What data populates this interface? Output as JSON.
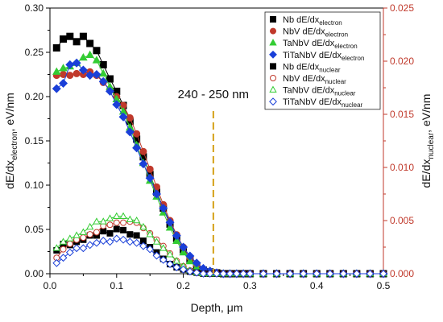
{
  "chart_data": {
    "type": "scatter",
    "xlabel": "Depth, μm",
    "ylabel_left": {
      "main": "dE/dx",
      "sub": "electron",
      "rest": ", eV/nm"
    },
    "ylabel_right": {
      "main": "dE/dx",
      "sub": "nuclear",
      "rest": ", eV/nm"
    },
    "xlim": [
      0,
      0.5
    ],
    "ylim_left": [
      0,
      0.3
    ],
    "ylim_right": [
      0,
      0.025
    ],
    "xticks": [
      "0.0",
      "0.1",
      "0.2",
      "0.3",
      "0.4",
      "0.5"
    ],
    "yticks_left": [
      "0.00",
      "0.05",
      "0.10",
      "0.15",
      "0.20",
      "0.25",
      "0.30"
    ],
    "yticks_right": [
      "0.000",
      "0.005",
      "0.010",
      "0.015",
      "0.020",
      "0.025"
    ],
    "grid": false,
    "legend_position": "top-right",
    "annotation": {
      "text": "240 - 250 nm",
      "x": 0.245,
      "color": "#d4a017"
    },
    "colors": {
      "right_axis": "#c0392b"
    },
    "series": [
      {
        "name": "Nb dE/dx",
        "sub": "electron",
        "axis": "left",
        "marker": "square",
        "fill": true,
        "color": "#000000",
        "x": [
          0.01,
          0.02,
          0.03,
          0.04,
          0.05,
          0.06,
          0.07,
          0.08,
          0.09,
          0.1,
          0.11,
          0.12,
          0.13,
          0.14,
          0.15,
          0.16,
          0.17,
          0.18,
          0.19,
          0.2,
          0.21,
          0.22,
          0.23,
          0.24,
          0.25,
          0.26,
          0.27,
          0.28,
          0.29,
          0.3,
          0.32,
          0.34,
          0.36,
          0.38,
          0.4,
          0.42,
          0.44,
          0.46,
          0.48,
          0.5
        ],
        "y": [
          0.255,
          0.265,
          0.268,
          0.262,
          0.268,
          0.26,
          0.252,
          0.236,
          0.22,
          0.206,
          0.19,
          0.172,
          0.152,
          0.132,
          0.112,
          0.092,
          0.074,
          0.056,
          0.04,
          0.027,
          0.016,
          0.009,
          0.004,
          0.002,
          0.001,
          0,
          0,
          0,
          0,
          0,
          0,
          0,
          0,
          0,
          0,
          0,
          0,
          0,
          0,
          0
        ]
      },
      {
        "name": "NbV  dE/dx",
        "sub": "electron",
        "axis": "left",
        "marker": "circle",
        "fill": true,
        "color": "#c0392b",
        "x": [
          0.01,
          0.02,
          0.03,
          0.04,
          0.05,
          0.06,
          0.07,
          0.08,
          0.09,
          0.1,
          0.11,
          0.12,
          0.13,
          0.14,
          0.15,
          0.16,
          0.17,
          0.18,
          0.19,
          0.2,
          0.21,
          0.22,
          0.23,
          0.24,
          0.25,
          0.26,
          0.27,
          0.28,
          0.29,
          0.3,
          0.32,
          0.34,
          0.36,
          0.38,
          0.4,
          0.42,
          0.44,
          0.46,
          0.48,
          0.5
        ],
        "y": [
          0.224,
          0.225,
          0.224,
          0.226,
          0.225,
          0.228,
          0.224,
          0.216,
          0.208,
          0.2,
          0.19,
          0.176,
          0.158,
          0.138,
          0.118,
          0.098,
          0.078,
          0.06,
          0.044,
          0.03,
          0.018,
          0.01,
          0.005,
          0.002,
          0.001,
          0,
          0,
          0,
          0,
          0,
          0,
          0,
          0,
          0,
          0,
          0,
          0,
          0,
          0,
          0
        ]
      },
      {
        "name": "TaNbV dE/dx",
        "sub": "electron",
        "axis": "left",
        "marker": "triangle",
        "fill": true,
        "color": "#33cc33",
        "x": [
          0.01,
          0.02,
          0.03,
          0.04,
          0.05,
          0.06,
          0.07,
          0.08,
          0.09,
          0.1,
          0.11,
          0.12,
          0.13,
          0.14,
          0.15,
          0.16,
          0.17,
          0.18,
          0.19,
          0.2,
          0.21,
          0.22,
          0.23,
          0.24,
          0.25,
          0.26,
          0.27,
          0.28,
          0.29,
          0.3,
          0.32,
          0.34,
          0.36,
          0.38,
          0.4,
          0.42,
          0.44,
          0.46,
          0.48,
          0.5
        ],
        "y": [
          0.228,
          0.232,
          0.234,
          0.238,
          0.244,
          0.247,
          0.241,
          0.226,
          0.211,
          0.197,
          0.183,
          0.165,
          0.145,
          0.125,
          0.105,
          0.087,
          0.069,
          0.052,
          0.037,
          0.024,
          0.014,
          0.007,
          0.003,
          0.001,
          0.0,
          0,
          0,
          0,
          0,
          0,
          0,
          0,
          0,
          0,
          0,
          0,
          0,
          0,
          0,
          0
        ]
      },
      {
        "name": "TiTaNbV dE/dx",
        "sub": "electron",
        "axis": "left",
        "marker": "diamond",
        "fill": true,
        "color": "#1a3fd8",
        "x": [
          0.01,
          0.02,
          0.03,
          0.04,
          0.05,
          0.06,
          0.07,
          0.08,
          0.09,
          0.1,
          0.11,
          0.12,
          0.13,
          0.14,
          0.15,
          0.16,
          0.17,
          0.18,
          0.19,
          0.2,
          0.21,
          0.22,
          0.23,
          0.24,
          0.25,
          0.26,
          0.27,
          0.28,
          0.29,
          0.3,
          0.32,
          0.34,
          0.36,
          0.38,
          0.4,
          0.42,
          0.44,
          0.46,
          0.48,
          0.5
        ],
        "y": [
          0.209,
          0.215,
          0.236,
          0.238,
          0.23,
          0.224,
          0.225,
          0.217,
          0.206,
          0.191,
          0.177,
          0.16,
          0.142,
          0.124,
          0.108,
          0.09,
          0.074,
          0.058,
          0.043,
          0.03,
          0.02,
          0.012,
          0.006,
          0.003,
          0.001,
          0,
          0,
          0,
          0,
          0,
          0,
          0,
          0,
          0,
          0,
          0,
          0,
          0,
          0,
          0
        ]
      },
      {
        "name": "Nb dE/dx",
        "sub": "nuclear",
        "axis": "right",
        "marker": "square",
        "fill": true,
        "color": "#000000",
        "x": [
          0.01,
          0.02,
          0.03,
          0.04,
          0.05,
          0.06,
          0.07,
          0.08,
          0.09,
          0.1,
          0.11,
          0.12,
          0.13,
          0.14,
          0.15,
          0.16,
          0.17,
          0.18,
          0.19,
          0.2,
          0.21,
          0.22,
          0.23,
          0.24,
          0.25,
          0.26,
          0.27,
          0.28,
          0.29,
          0.3,
          0.32,
          0.34,
          0.36,
          0.38,
          0.4,
          0.42,
          0.44,
          0.46,
          0.48,
          0.5
        ],
        "y": [
          0.0022,
          0.0028,
          0.0027,
          0.003,
          0.0032,
          0.0036,
          0.0036,
          0.004,
          0.0038,
          0.0042,
          0.0041,
          0.0037,
          0.0036,
          0.0031,
          0.0025,
          0.002,
          0.0014,
          0.0009,
          0.0006,
          0.0004,
          0.0002,
          0.0001,
          0.0,
          0.0,
          0,
          0,
          0,
          0,
          0,
          0,
          0,
          0,
          0,
          0,
          0,
          0,
          0,
          0,
          0,
          0
        ]
      },
      {
        "name": "NbV  dE/dx",
        "sub": "nuclear",
        "axis": "right",
        "marker": "circle",
        "fill": false,
        "color": "#c0392b",
        "x": [
          0.01,
          0.02,
          0.03,
          0.04,
          0.05,
          0.06,
          0.07,
          0.08,
          0.09,
          0.1,
          0.11,
          0.12,
          0.13,
          0.14,
          0.15,
          0.16,
          0.17,
          0.18,
          0.19,
          0.2,
          0.21,
          0.22,
          0.23,
          0.24,
          0.25,
          0.26,
          0.27,
          0.28,
          0.29,
          0.3,
          0.32,
          0.34,
          0.36,
          0.38,
          0.4,
          0.42,
          0.44,
          0.46,
          0.48,
          0.5
        ],
        "y": [
          0.0015,
          0.0023,
          0.0028,
          0.0032,
          0.0034,
          0.0037,
          0.0039,
          0.0045,
          0.0046,
          0.0048,
          0.0048,
          0.0049,
          0.0048,
          0.0043,
          0.0038,
          0.0032,
          0.0026,
          0.0019,
          0.0012,
          0.0007,
          0.0003,
          0.0001,
          0.0,
          0.0,
          0,
          0,
          0,
          0,
          0,
          0,
          0,
          0,
          0,
          0,
          0,
          0,
          0,
          0,
          0,
          0
        ]
      },
      {
        "name": "TaNbV dE/dx",
        "sub": "nuclear",
        "axis": "right",
        "marker": "triangle",
        "fill": false,
        "color": "#33cc33",
        "x": [
          0.01,
          0.02,
          0.03,
          0.04,
          0.05,
          0.06,
          0.07,
          0.08,
          0.09,
          0.1,
          0.11,
          0.12,
          0.13,
          0.14,
          0.15,
          0.16,
          0.17,
          0.18,
          0.19,
          0.2,
          0.21,
          0.22,
          0.23,
          0.24,
          0.25,
          0.26,
          0.27,
          0.28,
          0.29,
          0.3,
          0.32,
          0.34,
          0.36,
          0.38,
          0.4,
          0.42,
          0.44,
          0.46,
          0.48,
          0.5
        ],
        "y": [
          0.0024,
          0.003,
          0.0033,
          0.0036,
          0.0039,
          0.0044,
          0.0049,
          0.0049,
          0.0052,
          0.0054,
          0.0054,
          0.0051,
          0.005,
          0.0044,
          0.0037,
          0.003,
          0.0024,
          0.0018,
          0.0012,
          0.0007,
          0.0003,
          0.0001,
          0.0,
          0.0,
          0,
          0,
          0,
          0,
          0,
          0,
          0,
          0,
          0,
          0,
          0,
          0,
          0,
          0,
          0,
          0
        ]
      },
      {
        "name": "TiTaNbV dE/dx",
        "sub": "nuclear",
        "axis": "right",
        "marker": "diamond",
        "fill": false,
        "color": "#1a3fd8",
        "x": [
          0.01,
          0.02,
          0.03,
          0.04,
          0.05,
          0.06,
          0.07,
          0.08,
          0.09,
          0.1,
          0.11,
          0.12,
          0.13,
          0.14,
          0.15,
          0.16,
          0.17,
          0.18,
          0.19,
          0.2,
          0.21,
          0.22,
          0.23,
          0.24,
          0.25,
          0.26,
          0.27,
          0.28,
          0.29,
          0.3,
          0.32,
          0.34,
          0.36,
          0.38,
          0.4,
          0.42,
          0.44,
          0.46,
          0.48,
          0.5
        ],
        "y": [
          0.001,
          0.0015,
          0.002,
          0.0024,
          0.0024,
          0.0027,
          0.0029,
          0.0031,
          0.003,
          0.0033,
          0.0032,
          0.003,
          0.0029,
          0.0026,
          0.0023,
          0.0017,
          0.0013,
          0.0009,
          0.0006,
          0.0004,
          0.0002,
          0.0001,
          0.0,
          0.0,
          0,
          0,
          0,
          0,
          0,
          0,
          0,
          0,
          0,
          0,
          0,
          0,
          0,
          0,
          0,
          0
        ]
      }
    ]
  }
}
